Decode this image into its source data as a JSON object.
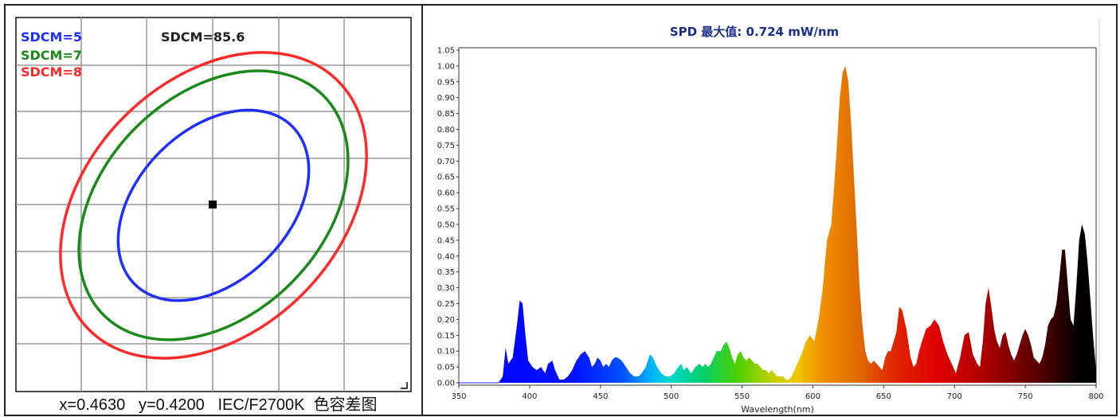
{
  "chart_data": [
    {
      "type": "scatter",
      "legend": [
        {
          "label": "SDCM=5",
          "color": "#1f2fff"
        },
        {
          "label": "SDCM=7",
          "color": "#1a8a1a"
        },
        {
          "label": "SDCM=8",
          "color": "#ff2a2a"
        }
      ],
      "title": "SDCM=85.6",
      "center_point": {
        "x": 0.463,
        "y": 0.42
      },
      "ellipses": [
        {
          "sdcm": 5,
          "color": "#1f2fff"
        },
        {
          "sdcm": 7,
          "color": "#1a8a1a"
        },
        {
          "sdcm": 8,
          "color": "#ff2a2a"
        }
      ],
      "grid": true,
      "caption": {
        "x": "x=0.4630",
        "y": "y=0.4200",
        "standard": "IEC/F2700K",
        "name": "色容差图"
      }
    },
    {
      "type": "area",
      "title": "SPD 最大值: 0.724 mW/nm",
      "xlabel": "Wavelength(nm)",
      "ylabel": "",
      "xlim": [
        350,
        800
      ],
      "ylim": [
        0,
        1.05
      ],
      "x_ticks": [
        "350",
        "400",
        "450",
        "500",
        "550",
        "600",
        "650",
        "700",
        "750",
        "800"
      ],
      "y_ticks": [
        "0.00",
        "0.05",
        "0.10",
        "0.15",
        "0.20",
        "0.25",
        "0.30",
        "0.35",
        "0.40",
        "0.45",
        "0.50",
        "0.55",
        "0.60",
        "0.65",
        "0.70",
        "0.75",
        "0.80",
        "0.85",
        "0.90",
        "0.95",
        "1.00",
        "1.05"
      ],
      "grid": false,
      "series": [
        {
          "x": [
            350,
            378,
            381,
            383,
            385,
            388,
            391,
            393,
            395,
            397,
            399,
            402,
            405,
            408,
            411,
            413,
            416,
            418,
            421,
            424,
            427,
            430,
            433,
            436,
            439,
            442,
            444,
            446,
            448,
            450,
            452,
            454,
            456,
            458,
            460,
            462,
            465,
            468,
            471,
            474,
            477,
            479,
            482,
            485,
            487,
            490,
            493,
            496,
            499,
            502,
            505,
            507,
            509,
            511,
            514,
            517,
            520,
            522,
            524,
            526,
            528,
            530,
            532,
            535,
            537,
            539,
            541,
            543,
            545,
            547,
            549,
            551,
            553,
            555,
            557,
            559,
            561,
            563,
            565,
            567,
            569,
            571,
            573,
            575,
            577,
            579,
            581,
            583,
            585,
            587,
            589,
            592,
            595,
            598,
            601,
            604,
            607,
            610,
            613,
            615,
            617,
            619,
            621,
            623,
            625,
            627,
            629,
            631,
            633,
            635,
            637,
            639,
            641,
            643,
            645,
            647,
            649,
            651,
            653,
            655,
            657,
            659,
            661,
            663,
            666,
            669,
            671,
            673,
            675,
            677,
            680,
            683,
            686,
            689,
            692,
            695,
            698,
            701,
            704,
            707,
            710,
            713,
            716,
            718,
            720,
            722,
            724,
            726,
            728,
            730,
            732,
            734,
            736,
            738,
            740,
            742,
            744,
            746,
            748,
            750,
            752,
            754,
            756,
            758,
            760,
            762,
            764,
            766,
            768,
            770,
            772,
            774,
            776,
            778,
            780,
            782,
            784,
            786,
            788,
            790,
            792,
            794,
            796,
            798,
            800
          ],
          "y": [
            0.0,
            0.0,
            0.02,
            0.11,
            0.06,
            0.08,
            0.18,
            0.26,
            0.25,
            0.15,
            0.07,
            0.05,
            0.04,
            0.05,
            0.03,
            0.06,
            0.07,
            0.04,
            0.01,
            0.01,
            0.02,
            0.04,
            0.07,
            0.09,
            0.1,
            0.08,
            0.05,
            0.06,
            0.08,
            0.07,
            0.05,
            0.06,
            0.05,
            0.07,
            0.08,
            0.08,
            0.07,
            0.05,
            0.03,
            0.02,
            0.02,
            0.03,
            0.05,
            0.09,
            0.08,
            0.05,
            0.03,
            0.02,
            0.02,
            0.03,
            0.05,
            0.06,
            0.04,
            0.05,
            0.03,
            0.05,
            0.06,
            0.05,
            0.06,
            0.05,
            0.06,
            0.08,
            0.1,
            0.1,
            0.12,
            0.13,
            0.11,
            0.08,
            0.06,
            0.09,
            0.1,
            0.08,
            0.07,
            0.08,
            0.07,
            0.06,
            0.06,
            0.05,
            0.04,
            0.04,
            0.03,
            0.04,
            0.03,
            0.02,
            0.02,
            0.02,
            0.01,
            0.01,
            0.02,
            0.04,
            0.06,
            0.09,
            0.13,
            0.15,
            0.13,
            0.2,
            0.3,
            0.45,
            0.5,
            0.62,
            0.75,
            0.9,
            0.98,
            1.0,
            0.95,
            0.82,
            0.65,
            0.48,
            0.3,
            0.18,
            0.1,
            0.07,
            0.06,
            0.07,
            0.06,
            0.05,
            0.04,
            0.08,
            0.1,
            0.1,
            0.13,
            0.16,
            0.24,
            0.23,
            0.17,
            0.08,
            0.05,
            0.06,
            0.1,
            0.13,
            0.17,
            0.18,
            0.2,
            0.18,
            0.13,
            0.09,
            0.06,
            0.03,
            0.08,
            0.15,
            0.16,
            0.09,
            0.06,
            0.05,
            0.13,
            0.25,
            0.3,
            0.24,
            0.17,
            0.13,
            0.11,
            0.15,
            0.16,
            0.12,
            0.09,
            0.07,
            0.09,
            0.12,
            0.15,
            0.17,
            0.15,
            0.12,
            0.08,
            0.07,
            0.06,
            0.08,
            0.12,
            0.18,
            0.2,
            0.21,
            0.25,
            0.33,
            0.42,
            0.42,
            0.31,
            0.2,
            0.18,
            0.3,
            0.45,
            0.5,
            0.47,
            0.38,
            0.26,
            0.14,
            0.04
          ]
        }
      ]
    }
  ]
}
